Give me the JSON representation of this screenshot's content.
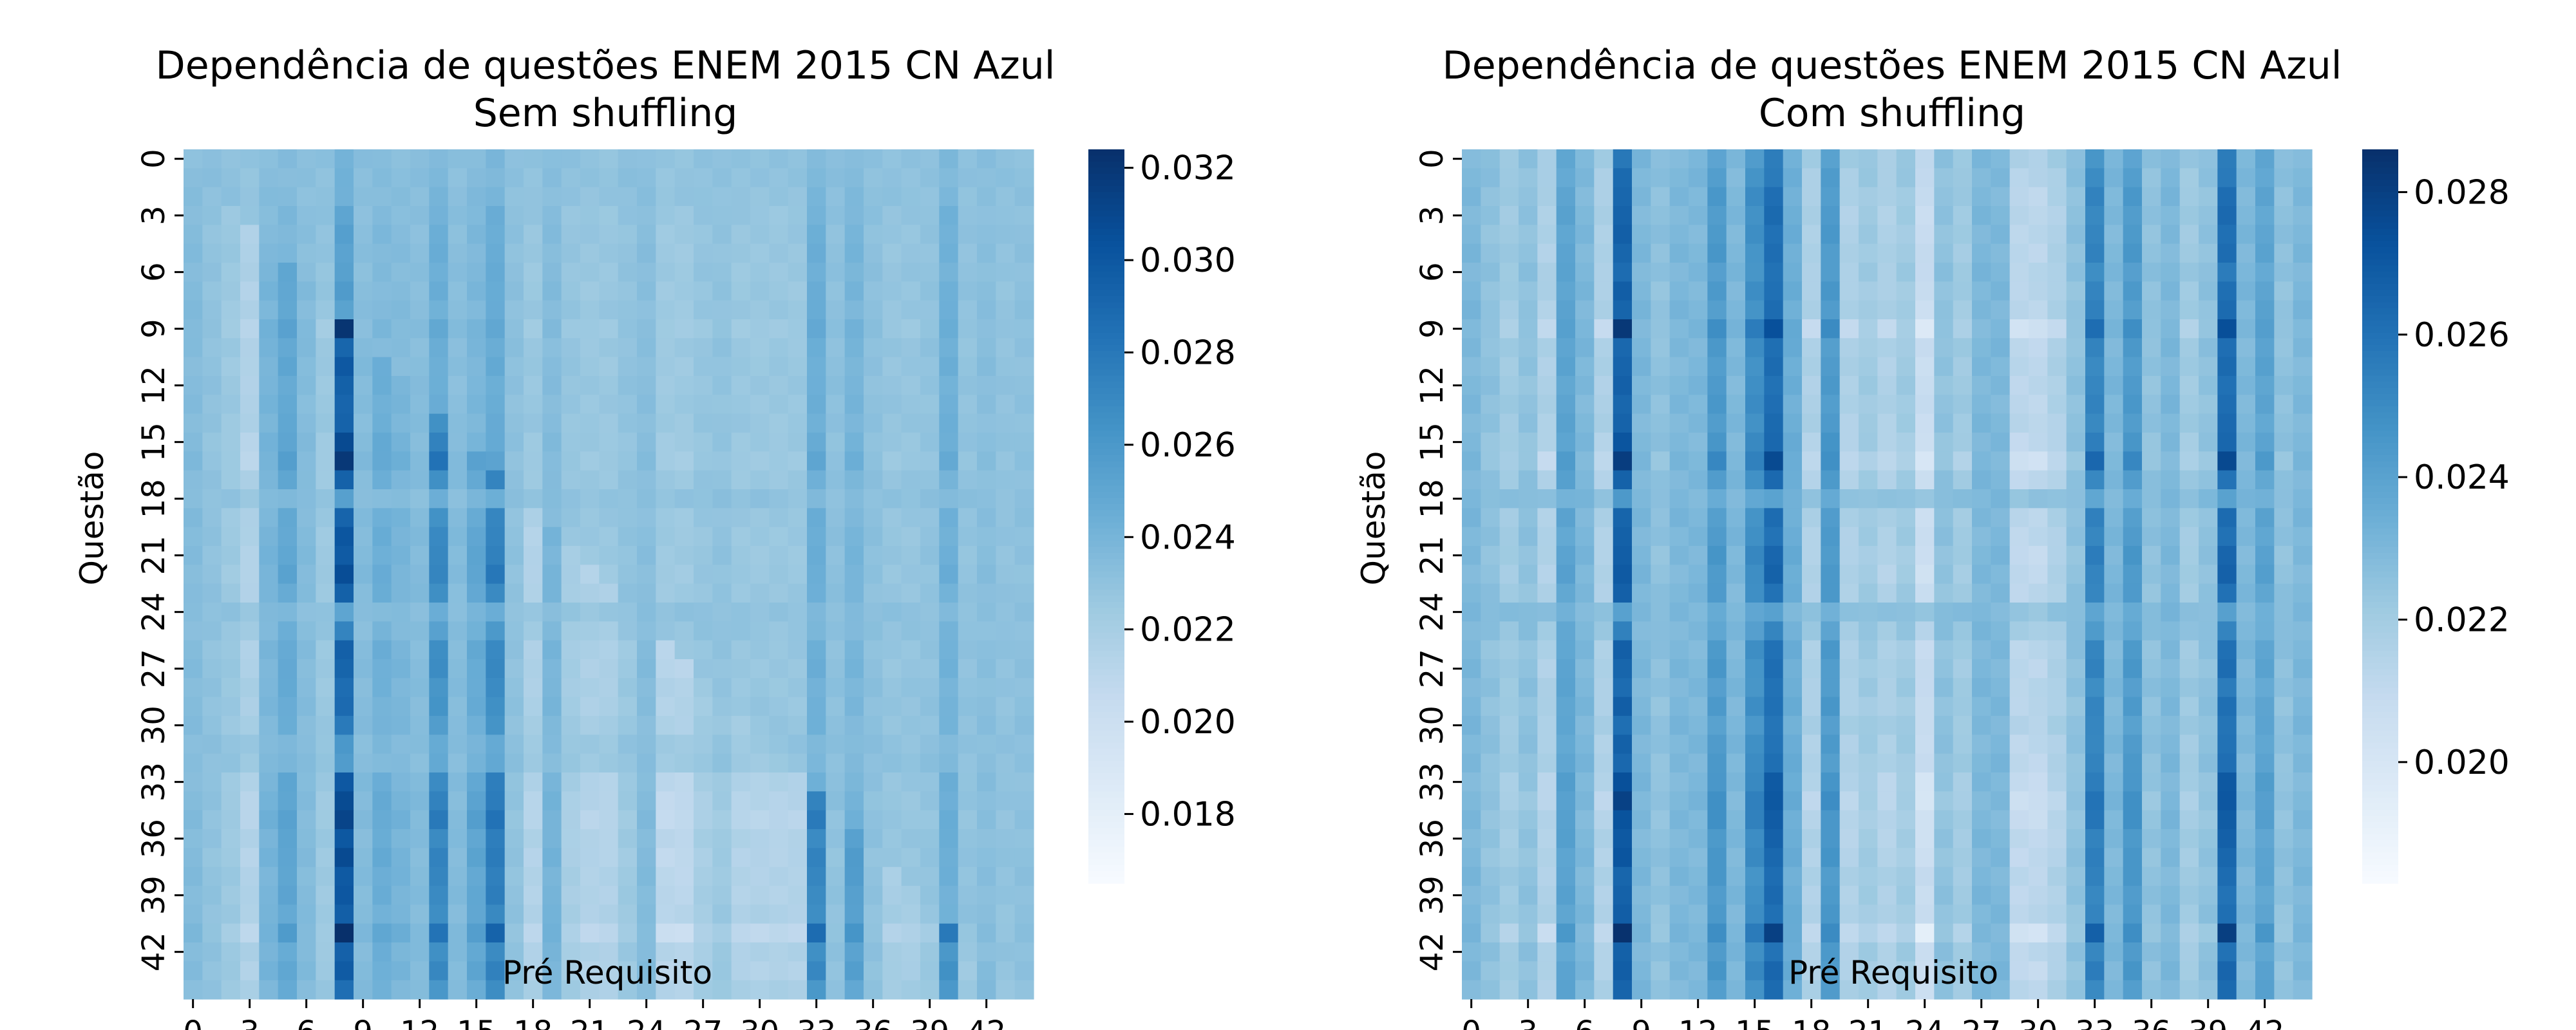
{
  "chart_data": [
    {
      "type": "heatmap",
      "title": "Dependência de questões ENEM 2015 CN Azul",
      "subtitle": "Sem shuffling",
      "xlabel": "Pré Requisito",
      "ylabel": "Questão",
      "n": 45,
      "x_ticks": [
        "0",
        "3",
        "6",
        "9",
        "12",
        "15",
        "18",
        "21",
        "24",
        "27",
        "30",
        "33",
        "36",
        "39",
        "42"
      ],
      "y_ticks": [
        "0",
        "3",
        "6",
        "9",
        "12",
        "15",
        "18",
        "21",
        "24",
        "27",
        "30",
        "33",
        "36",
        "39",
        "42"
      ],
      "colorbar": {
        "min": 0.0165,
        "max": 0.0324,
        "ticks": [
          "0.018",
          "0.020",
          "0.022",
          "0.024",
          "0.026",
          "0.028",
          "0.030",
          "0.032"
        ],
        "tick_values": [
          0.018,
          0.02,
          0.022,
          0.024,
          0.026,
          0.028,
          0.03,
          0.032
        ]
      },
      "column_profile": [
        0.0235,
        0.023,
        0.0225,
        0.0215,
        0.024,
        0.025,
        0.0235,
        0.0225,
        0.03,
        0.0235,
        0.0245,
        0.024,
        0.0235,
        0.027,
        0.0235,
        0.025,
        0.0275,
        0.023,
        0.0215,
        0.024,
        0.022,
        0.0215,
        0.0215,
        0.0225,
        0.0235,
        0.021,
        0.021,
        0.022,
        0.0225,
        0.0215,
        0.0215,
        0.0215,
        0.0215,
        0.027,
        0.023,
        0.0255,
        0.023,
        0.022,
        0.022,
        0.0225,
        0.0265,
        0.0225,
        0.0235,
        0.0225,
        0.023
      ],
      "row_scale": [
        0.4,
        0.4,
        0.5,
        0.8,
        0.9,
        0.9,
        0.9,
        1.0,
        0.9,
        1.3,
        0.9,
        1.0,
        0.9,
        0.9,
        0.9,
        1.1,
        1.3,
        0.9,
        0.3,
        0.9,
        1.0,
        1.0,
        1.1,
        0.9,
        0.3,
        0.6,
        0.9,
        0.9,
        0.8,
        0.8,
        0.7,
        0.4,
        0.4,
        1.0,
        1.1,
        1.2,
        1.0,
        1.1,
        1.0,
        1.0,
        0.9,
        1.4,
        0.9,
        1.0,
        0.8
      ],
      "background": 0.0232,
      "triangular": true
    },
    {
      "type": "heatmap",
      "title": "Dependência de questões ENEM 2015 CN Azul",
      "subtitle": "Com shuffling",
      "xlabel": "Pré Requisito",
      "ylabel": "Questão",
      "n": 45,
      "x_ticks": [
        "0",
        "3",
        "6",
        "9",
        "12",
        "15",
        "18",
        "21",
        "24",
        "27",
        "30",
        "33",
        "36",
        "39",
        "42"
      ],
      "y_ticks": [
        "0",
        "3",
        "6",
        "9",
        "12",
        "15",
        "18",
        "21",
        "24",
        "27",
        "30",
        "33",
        "36",
        "39",
        "42"
      ],
      "colorbar": {
        "min": 0.0183,
        "max": 0.0286,
        "ticks": [
          "0.020",
          "0.022",
          "0.024",
          "0.026",
          "0.028"
        ],
        "tick_values": [
          0.02,
          0.022,
          0.024,
          0.026,
          0.028
        ]
      },
      "column_profile": [
        0.023,
        0.0225,
        0.022,
        0.0225,
        0.0215,
        0.024,
        0.023,
        0.0215,
        0.027,
        0.023,
        0.0225,
        0.023,
        0.023,
        0.0245,
        0.023,
        0.025,
        0.0265,
        0.0235,
        0.0215,
        0.0245,
        0.0215,
        0.022,
        0.0215,
        0.022,
        0.0205,
        0.0225,
        0.022,
        0.023,
        0.023,
        0.021,
        0.021,
        0.0215,
        0.0225,
        0.0255,
        0.023,
        0.0245,
        0.0225,
        0.023,
        0.022,
        0.0225,
        0.0265,
        0.023,
        0.024,
        0.0225,
        0.023
      ],
      "row_scale": [
        0.7,
        0.8,
        0.9,
        0.9,
        0.9,
        0.9,
        0.8,
        0.9,
        0.9,
        1.3,
        0.9,
        0.9,
        0.9,
        0.9,
        0.9,
        1.0,
        1.3,
        0.9,
        0.3,
        0.9,
        0.9,
        1.0,
        1.0,
        0.9,
        0.3,
        0.6,
        0.9,
        0.9,
        0.8,
        0.9,
        0.8,
        0.9,
        0.9,
        1.1,
        1.2,
        1.1,
        1.0,
        1.0,
        0.9,
        0.9,
        0.9,
        1.4,
        0.9,
        1.0,
        0.9
      ],
      "background": 0.023,
      "triangular": false
    }
  ]
}
